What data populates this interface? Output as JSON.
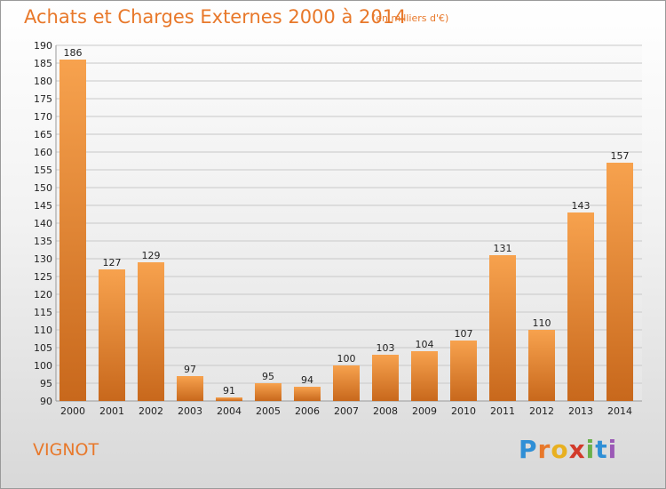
{
  "header": {
    "title": "Achats et Charges Externes 2000 à 2014",
    "subtitle": "(en milliers d'€)"
  },
  "footer": {
    "commune": "VIGNOT",
    "logo_letters": [
      "P",
      "r",
      "o",
      "x",
      "i",
      "t",
      "i"
    ],
    "logo_colors": [
      "#2f8fd6",
      "#e8782a",
      "#e8b020",
      "#d23a2a",
      "#6ab04a",
      "#2f8fd6",
      "#9b59b6"
    ]
  },
  "colors": {
    "bar_light": "#f7a24e",
    "bar_dark": "#c8681c",
    "title": "#e8782a",
    "grid": "#c8c8c8"
  },
  "chart_data": {
    "type": "bar",
    "title": "Achats et Charges Externes 2000 à 2014",
    "subtitle": "(en milliers d'€)",
    "categories": [
      "2000",
      "2001",
      "2002",
      "2003",
      "2004",
      "2005",
      "2006",
      "2007",
      "2008",
      "2009",
      "2010",
      "2011",
      "2012",
      "2013",
      "2014"
    ],
    "values": [
      186,
      127,
      129,
      97,
      91,
      95,
      94,
      100,
      103,
      104,
      107,
      131,
      110,
      143,
      157
    ],
    "data_labels": [
      "186",
      "127",
      "129",
      "97",
      "91",
      "95",
      "94",
      "100",
      "103",
      "104",
      "107",
      "131",
      "110",
      "143",
      "157"
    ],
    "ylim": [
      90,
      190
    ],
    "yticks": [
      90,
      95,
      100,
      105,
      110,
      115,
      120,
      125,
      130,
      135,
      140,
      145,
      150,
      155,
      160,
      165,
      170,
      175,
      180,
      185,
      190
    ],
    "xlabel": "",
    "ylabel": "",
    "grid": true
  }
}
